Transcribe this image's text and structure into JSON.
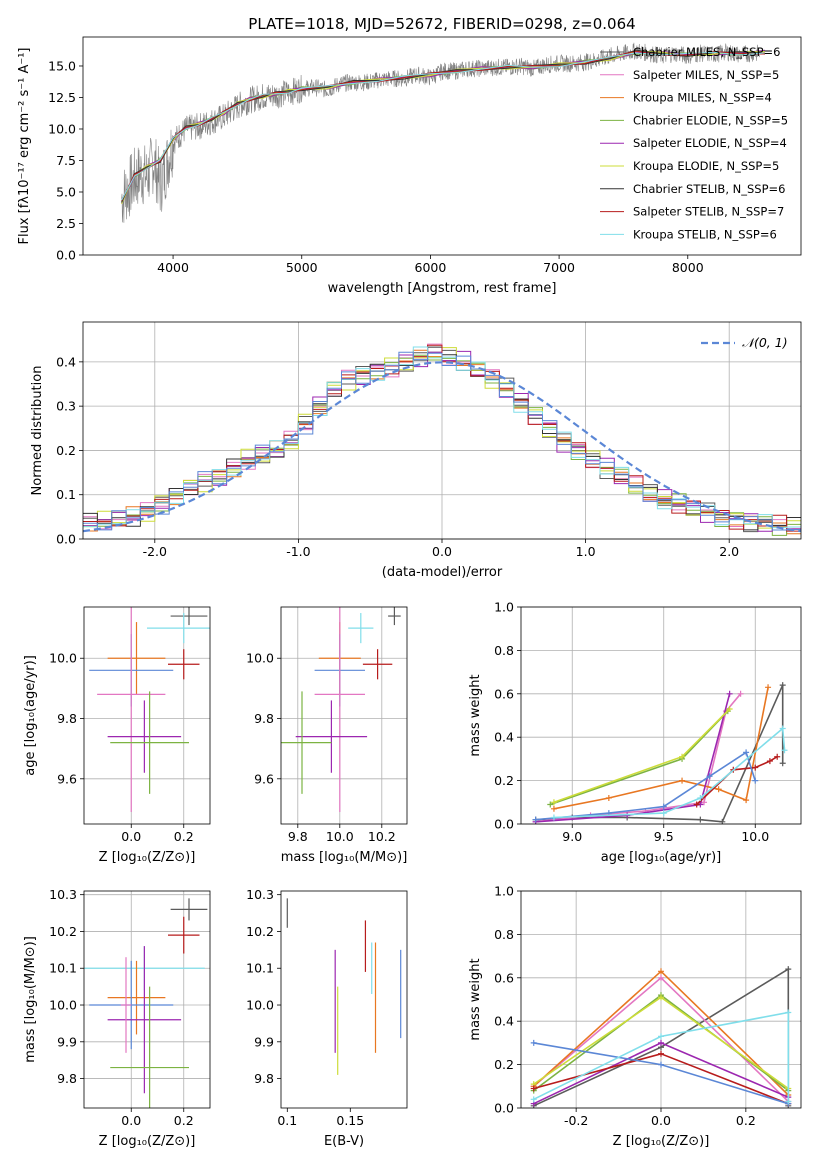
{
  "chart_data": [
    {
      "type": "line",
      "title": "PLATE=1018, MJD=52672, FIBERID=0298, z=0.064",
      "xlabel": "wavelength [Angstrom, rest frame]",
      "ylabel": "Flux [fλ10⁻¹⁷ erg cm⁻² s⁻¹ A⁻¹]",
      "xlim": [
        3300,
        8880
      ],
      "ylim": [
        0,
        17.3
      ],
      "xticks": [
        4000,
        5000,
        6000,
        7000,
        8000
      ],
      "yticks": [
        0.0,
        2.5,
        5.0,
        7.5,
        10.0,
        12.5,
        15.0
      ],
      "grid": false,
      "legend_position": "upper-right",
      "observed_spectrum": {
        "color": "#808080",
        "x": [
          3600,
          3650,
          3700,
          3750,
          3800,
          3850,
          3900,
          3950,
          4000,
          4100,
          4200,
          4300,
          4400,
          4500,
          4600,
          4700,
          4800,
          4900,
          5000,
          5100,
          5200,
          5300,
          5400,
          5500,
          5600,
          5700,
          5800,
          5900,
          6000,
          6100,
          6200,
          6300,
          6400,
          6500,
          6600,
          6700,
          6800,
          6900,
          7000,
          7100,
          7200,
          7300,
          7400,
          7500,
          7600,
          7700,
          7800,
          7900,
          8000,
          8100,
          8200,
          8300,
          8400,
          8500
        ],
        "y": [
          4.5,
          5.2,
          6.0,
          6.5,
          6.2,
          7.5,
          5.5,
          7.2,
          9.0,
          10.0,
          10.2,
          10.6,
          11.0,
          11.8,
          12.3,
          12.6,
          12.7,
          12.9,
          13.2,
          13.3,
          13.1,
          13.6,
          13.7,
          13.7,
          13.9,
          14.0,
          14.0,
          14.3,
          14.1,
          14.6,
          14.6,
          14.8,
          14.8,
          14.9,
          14.9,
          15.0,
          14.8,
          15.1,
          15.2,
          15.2,
          15.3,
          15.5,
          15.8,
          16.0,
          16.2,
          16.0,
          15.8,
          16.0,
          15.8,
          16.0,
          15.9,
          16.1,
          15.9,
          16.0
        ]
      },
      "series": [
        {
          "name": "Chabrier MILES, N_SSP=6",
          "color": "#5b5b5b"
        },
        {
          "name": "Salpeter MILES, N_SSP=5",
          "color": "#e377c2"
        },
        {
          "name": "Kroupa MILES, N_SSP=4",
          "color": "#e87722"
        },
        {
          "name": "Chabrier ELODIE, N_SSP=5",
          "color": "#7cb342"
        },
        {
          "name": "Salpeter ELODIE, N_SSP=4",
          "color": "#9c27b0"
        },
        {
          "name": "Kroupa ELODIE, N_SSP=5",
          "color": "#cddc39"
        },
        {
          "name": "Chabrier STELIB, N_SSP=6",
          "color": "#333333"
        },
        {
          "name": "Salpeter STELIB, N_SSP=7",
          "color": "#b71c1c"
        },
        {
          "name": "Kroupa STELIB, N_SSP=6",
          "color": "#80deea"
        }
      ],
      "model_x": [
        3600,
        3700,
        3800,
        3900,
        4000,
        4100,
        4200,
        4300,
        4400,
        4500,
        4600,
        4700,
        4800,
        4900,
        5000,
        5200,
        5400,
        5600,
        5800,
        6000,
        6200,
        6400,
        6600,
        6800,
        7000,
        7200,
        7400,
        7600,
        7800,
        8000,
        8200,
        8400,
        8600
      ],
      "model_y": [
        4.2,
        6.3,
        7.0,
        7.5,
        9.2,
        10.1,
        10.4,
        10.8,
        11.3,
        12.0,
        12.4,
        12.6,
        12.8,
        13.0,
        13.2,
        13.3,
        13.7,
        13.9,
        14.1,
        14.3,
        14.6,
        14.8,
        14.9,
        14.9,
        15.1,
        15.3,
        15.6,
        16.1,
        16.0,
        15.9,
        16.0,
        16.0,
        16.1
      ]
    },
    {
      "type": "step",
      "xlabel": "(data-model)/error",
      "ylabel": "Normed distribution",
      "xlim": [
        -2.5,
        2.5
      ],
      "ylim": [
        0,
        0.49
      ],
      "xticks": [
        -2,
        -1,
        0,
        1,
        2
      ],
      "yticks": [
        0.0,
        0.1,
        0.2,
        0.3,
        0.4
      ],
      "grid": true,
      "legend": [
        "𝒩(0, 1)"
      ],
      "legend_position": "upper-right",
      "bin_width": 0.1,
      "bin_start": -2.5,
      "gaussian": {
        "mean": 0,
        "sigma": 1,
        "color": "#5b87d6",
        "style": "dashed"
      },
      "hist_bins": [
        0.035,
        0.04,
        0.045,
        0.05,
        0.06,
        0.08,
        0.1,
        0.12,
        0.13,
        0.14,
        0.16,
        0.18,
        0.19,
        0.2,
        0.22,
        0.26,
        0.3,
        0.34,
        0.36,
        0.37,
        0.38,
        0.39,
        0.4,
        0.41,
        0.42,
        0.41,
        0.4,
        0.38,
        0.36,
        0.34,
        0.31,
        0.28,
        0.25,
        0.22,
        0.2,
        0.18,
        0.16,
        0.14,
        0.12,
        0.1,
        0.09,
        0.08,
        0.07,
        0.06,
        0.05,
        0.045,
        0.04,
        0.035,
        0.03,
        0.03
      ],
      "series_colors": [
        "#5b5b5b",
        "#e377c2",
        "#e87722",
        "#7cb342",
        "#9c27b0",
        "#cddc39",
        "#333333",
        "#b71c1c",
        "#80deea",
        "#5b87d6"
      ]
    },
    {
      "type": "errorbar",
      "xlabel": "Z [log₁₀(Z/Z⊙)]",
      "ylabel": "age  [log₁₀(age/yr)]",
      "xlim": [
        -0.18,
        0.3
      ],
      "ylim": [
        9.45,
        10.17
      ],
      "xticks": [
        0.0,
        0.2
      ],
      "yticks": [
        9.6,
        9.8,
        10.0
      ],
      "grid": true,
      "points": [
        {
          "x": 0.22,
          "xerr": 0.07,
          "y": 10.14,
          "yerr": 0.03,
          "color": "#5b5b5b"
        },
        {
          "x": 0.2,
          "xerr": 0.14,
          "y": 10.1,
          "yerr": 0.05,
          "color": "#80deea"
        },
        {
          "x": 0.02,
          "xerr": 0.11,
          "y": 10.0,
          "yerr": 0.12,
          "color": "#e87722"
        },
        {
          "x": 0.2,
          "xerr": 0.06,
          "y": 9.98,
          "yerr": 0.05,
          "color": "#b71c1c"
        },
        {
          "x": 0.0,
          "xerr": 0.16,
          "y": 9.96,
          "yerr": 0.12,
          "color": "#5b87d6"
        },
        {
          "x": 0.0,
          "xerr": 0.13,
          "y": 9.88,
          "yerr": 0.39,
          "color": "#e377c2"
        },
        {
          "x": 0.05,
          "xerr": 0.14,
          "y": 9.74,
          "yerr": 0.12,
          "color": "#9c27b0"
        },
        {
          "x": 0.07,
          "xerr": 0.15,
          "y": 9.72,
          "yerr": 0.17,
          "color": "#7cb342"
        }
      ]
    },
    {
      "type": "errorbar",
      "xlabel": "mass [log₁₀(M/M⊙)]",
      "xlim": [
        9.72,
        10.32
      ],
      "ylim": [
        9.45,
        10.17
      ],
      "xticks": [
        9.8,
        10.0,
        10.2
      ],
      "yticks": [
        9.6,
        9.8,
        10.0
      ],
      "grid": true,
      "points": [
        {
          "x": 10.26,
          "xerr": 0.03,
          "y": 10.14,
          "yerr": 0.03,
          "color": "#5b5b5b"
        },
        {
          "x": 10.1,
          "xerr": 0.06,
          "y": 10.1,
          "yerr": 0.05,
          "color": "#80deea"
        },
        {
          "x": 10.0,
          "xerr": 0.1,
          "y": 10.0,
          "yerr": 0.12,
          "color": "#e87722"
        },
        {
          "x": 10.18,
          "xerr": 0.07,
          "y": 9.98,
          "yerr": 0.05,
          "color": "#b71c1c"
        },
        {
          "x": 10.0,
          "xerr": 0.12,
          "y": 9.96,
          "yerr": 0.12,
          "color": "#5b87d6"
        },
        {
          "x": 10.0,
          "xerr": 0.12,
          "y": 9.88,
          "yerr": 0.39,
          "color": "#e377c2"
        },
        {
          "x": 9.96,
          "xerr": 0.17,
          "y": 9.74,
          "yerr": 0.12,
          "color": "#9c27b0"
        },
        {
          "x": 9.82,
          "xerr": 0.14,
          "y": 9.72,
          "yerr": 0.17,
          "color": "#7cb342"
        }
      ]
    },
    {
      "type": "line",
      "xlabel": "age  [log₁₀(age/yr)]",
      "ylabel": "mass weight",
      "xlim": [
        8.72,
        10.25
      ],
      "ylim": [
        0.0,
        1.0
      ],
      "xticks": [
        9.0,
        9.5,
        10.0
      ],
      "yticks": [
        0.0,
        0.2,
        0.4,
        0.6,
        0.8,
        1.0
      ],
      "grid": true,
      "series": [
        {
          "color": "#5b5b5b",
          "x": [
            8.8,
            9.0,
            9.3,
            9.7,
            9.82,
            10.15,
            10.15
          ],
          "y": [
            0.02,
            0.03,
            0.03,
            0.02,
            0.01,
            0.64,
            0.28
          ]
        },
        {
          "color": "#e377c2",
          "x": [
            8.8,
            9.1,
            9.4,
            9.72,
            9.84,
            9.92
          ],
          "y": [
            0.01,
            0.04,
            0.06,
            0.1,
            0.52,
            0.6
          ]
        },
        {
          "color": "#e87722",
          "x": [
            8.9,
            9.2,
            9.6,
            9.8,
            9.95,
            10.07
          ],
          "y": [
            0.07,
            0.12,
            0.2,
            0.16,
            0.11,
            0.63
          ]
        },
        {
          "color": "#7cb342",
          "x": [
            8.88,
            9.6,
            9.85
          ],
          "y": [
            0.09,
            0.3,
            0.52
          ]
        },
        {
          "color": "#9c27b0",
          "x": [
            8.8,
            9.3,
            9.7,
            9.86
          ],
          "y": [
            0.01,
            0.04,
            0.09,
            0.6
          ]
        },
        {
          "color": "#cddc39",
          "x": [
            8.9,
            9.6,
            9.86
          ],
          "y": [
            0.1,
            0.31,
            0.53
          ]
        },
        {
          "color": "#b71c1c",
          "x": [
            9.68,
            9.88,
            10.0,
            10.08,
            10.12
          ],
          "y": [
            0.09,
            0.25,
            0.26,
            0.29,
            0.31
          ]
        },
        {
          "color": "#5b87d6",
          "x": [
            8.8,
            9.2,
            9.5,
            9.75,
            9.95,
            10.0
          ],
          "y": [
            0.02,
            0.05,
            0.08,
            0.22,
            0.33,
            0.2
          ]
        },
        {
          "color": "#80deea",
          "x": [
            8.9,
            9.5,
            9.7,
            10.15,
            10.16
          ],
          "y": [
            0.03,
            0.05,
            0.12,
            0.44,
            0.34
          ]
        }
      ]
    },
    {
      "type": "errorbar",
      "xlabel": "Z [log₁₀(Z/Z⊙)]",
      "ylabel": "mass [log₁₀(M/M⊙)]",
      "xlim": [
        -0.18,
        0.3
      ],
      "ylim": [
        9.72,
        10.31
      ],
      "xticks": [
        0.0,
        0.2
      ],
      "yticks": [
        9.8,
        9.9,
        10.0,
        10.1,
        10.2,
        10.3
      ],
      "grid": true,
      "points": [
        {
          "x": 0.22,
          "xerr": 0.07,
          "y": 10.26,
          "yerr": 0.03,
          "color": "#5b5b5b"
        },
        {
          "x": 0.2,
          "xerr": 0.06,
          "y": 10.19,
          "yerr": 0.05,
          "color": "#b71c1c"
        },
        {
          "x": 0.05,
          "xerr": 0.23,
          "y": 10.1,
          "yerr": 0.06,
          "color": "#80deea"
        },
        {
          "x": 0.02,
          "xerr": 0.11,
          "y": 10.02,
          "yerr": 0.1,
          "color": "#e87722"
        },
        {
          "x": 0.0,
          "xerr": 0.16,
          "y": 10.0,
          "yerr": 0.12,
          "color": "#5b87d6"
        },
        {
          "x": 0.05,
          "xerr": 0.14,
          "y": 9.96,
          "yerr": 0.2,
          "color": "#9c27b0"
        },
        {
          "x": 0.07,
          "xerr": 0.15,
          "y": 9.83,
          "yerr": 0.22,
          "color": "#7cb342"
        },
        {
          "x": -0.02,
          "xerr": 0.02,
          "y": 10.0,
          "yerr": 0.13,
          "color": "#e377c2"
        }
      ]
    },
    {
      "type": "errorbar",
      "xlabel": "E(B-V)",
      "xlim": [
        0.095,
        0.195
      ],
      "ylim": [
        9.72,
        10.31
      ],
      "xticks": [
        0.1,
        0.15
      ],
      "yticks": [
        9.8,
        9.9,
        10.0,
        10.1,
        10.2,
        10.3
      ],
      "grid": false,
      "points": [
        {
          "x": 0.1,
          "y": 10.25,
          "yerr": 0.04,
          "color": "#5b5b5b"
        },
        {
          "x": 0.162,
          "y": 10.16,
          "yerr": 0.07,
          "color": "#b71c1c"
        },
        {
          "x": 0.167,
          "y": 10.1,
          "yerr": 0.07,
          "color": "#80deea"
        },
        {
          "x": 0.19,
          "y": 10.03,
          "yerr": 0.12,
          "color": "#5b87d6"
        },
        {
          "x": 0.17,
          "y": 10.02,
          "yerr": 0.15,
          "color": "#e87722"
        },
        {
          "x": 0.138,
          "y": 10.01,
          "yerr": 0.14,
          "color": "#9c27b0"
        },
        {
          "x": 0.14,
          "y": 9.93,
          "yerr": 0.12,
          "color": "#cddc39"
        }
      ]
    },
    {
      "type": "line",
      "xlabel": "Z [log₁₀(Z/Z⊙)]",
      "ylabel": "mass weight",
      "xlim": [
        -0.33,
        0.33
      ],
      "ylim": [
        0.0,
        1.0
      ],
      "xticks": [
        -0.2,
        0.0,
        0.2
      ],
      "yticks": [
        0.0,
        0.2,
        0.4,
        0.6,
        0.8,
        1.0
      ],
      "grid": true,
      "series": [
        {
          "color": "#5b5b5b",
          "x": [
            -0.3,
            0.0,
            0.3,
            0.3
          ],
          "y": [
            0.01,
            0.28,
            0.64,
            0.01
          ]
        },
        {
          "color": "#e377c2",
          "x": [
            -0.3,
            0.0,
            0.3
          ],
          "y": [
            0.1,
            0.6,
            0.03
          ]
        },
        {
          "color": "#e87722",
          "x": [
            -0.3,
            0.0,
            0.3
          ],
          "y": [
            0.1,
            0.63,
            0.06
          ]
        },
        {
          "color": "#7cb342",
          "x": [
            -0.3,
            0.0,
            0.3
          ],
          "y": [
            0.08,
            0.52,
            0.08
          ]
        },
        {
          "color": "#9c27b0",
          "x": [
            -0.3,
            0.0,
            0.3
          ],
          "y": [
            0.02,
            0.3,
            0.05
          ]
        },
        {
          "color": "#cddc39",
          "x": [
            -0.3,
            0.0,
            0.3
          ],
          "y": [
            0.11,
            0.51,
            0.09
          ]
        },
        {
          "color": "#b71c1c",
          "x": [
            -0.3,
            0.0,
            0.3
          ],
          "y": [
            0.09,
            0.25,
            0.02
          ]
        },
        {
          "color": "#5b87d6",
          "x": [
            -0.3,
            0.0,
            0.3
          ],
          "y": [
            0.3,
            0.2,
            0.02
          ]
        },
        {
          "color": "#80deea",
          "x": [
            -0.3,
            0.0,
            0.3,
            0.3
          ],
          "y": [
            0.04,
            0.33,
            0.44,
            0.03
          ]
        }
      ]
    }
  ]
}
